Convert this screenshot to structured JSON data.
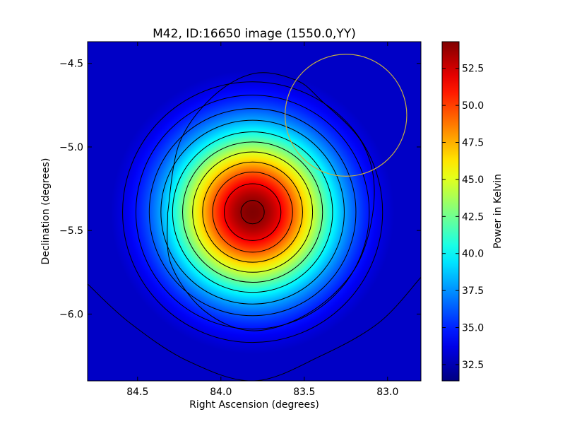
{
  "chart_data": {
    "type": "heatmap",
    "title": "M42, ID:16650 image (1550.0,YY)",
    "xlabel": "Right Ascension (degrees)",
    "ylabel": "Declination (degrees)",
    "xlim": [
      84.8,
      82.8
    ],
    "ylim": [
      -6.4,
      -4.37
    ],
    "x_ticks": [
      84.5,
      84.0,
      83.5,
      83.0
    ],
    "x_tick_labels": [
      "84.5",
      "84.0",
      "83.5",
      "83.0"
    ],
    "y_ticks": [
      -4.5,
      -5.0,
      -5.5,
      -6.0
    ],
    "y_tick_labels": [
      "−4.5",
      "−5.0",
      "−5.5",
      "−6.0"
    ],
    "colormap": "jet",
    "value_range": [
      31.4,
      54.3
    ],
    "source_center": {
      "ra": 83.81,
      "dec": -5.39
    },
    "background_level": 32.0,
    "peak_level": 54.3,
    "contours": {
      "color": "#000000",
      "center": {
        "ra": 83.81,
        "dec": -5.39
      },
      "radii_deg": [
        0.07,
        0.17,
        0.24,
        0.3,
        0.36,
        0.42,
        0.48,
        0.55,
        0.62,
        0.7,
        0.78
      ]
    },
    "outer_contours": [
      {
        "name": "outer-wave-contour",
        "points": [
          [
            84.8,
            -5.82
          ],
          [
            84.55,
            -6.05
          ],
          [
            84.2,
            -6.28
          ],
          [
            83.8,
            -6.4
          ],
          [
            83.4,
            -6.25
          ],
          [
            83.05,
            -6.05
          ],
          [
            82.8,
            -5.78
          ]
        ]
      },
      {
        "name": "outer-enclosing-contour",
        "points": [
          [
            84.32,
            -5.4
          ],
          [
            84.25,
            -4.98
          ],
          [
            84.05,
            -4.7
          ],
          [
            83.8,
            -4.56
          ],
          [
            83.55,
            -4.6
          ],
          [
            83.4,
            -4.72
          ],
          [
            83.15,
            -4.98
          ],
          [
            83.08,
            -5.3
          ],
          [
            83.18,
            -5.7
          ],
          [
            83.45,
            -5.98
          ],
          [
            83.8,
            -6.1
          ],
          [
            84.1,
            -5.98
          ],
          [
            84.3,
            -5.7
          ],
          [
            84.32,
            -5.4
          ]
        ]
      }
    ],
    "beam_circle": {
      "ra": 83.25,
      "dec": -4.81,
      "radius_deg": 0.365,
      "color": "#c8b040"
    },
    "colorbar": {
      "label": "Power in Kelvin",
      "ticks": [
        32.5,
        35.0,
        37.5,
        40.0,
        42.5,
        45.0,
        47.5,
        50.0,
        52.5
      ],
      "tick_labels": [
        "32.5",
        "35.0",
        "37.5",
        "40.0",
        "42.5",
        "45.0",
        "47.5",
        "50.0",
        "52.5"
      ]
    }
  }
}
